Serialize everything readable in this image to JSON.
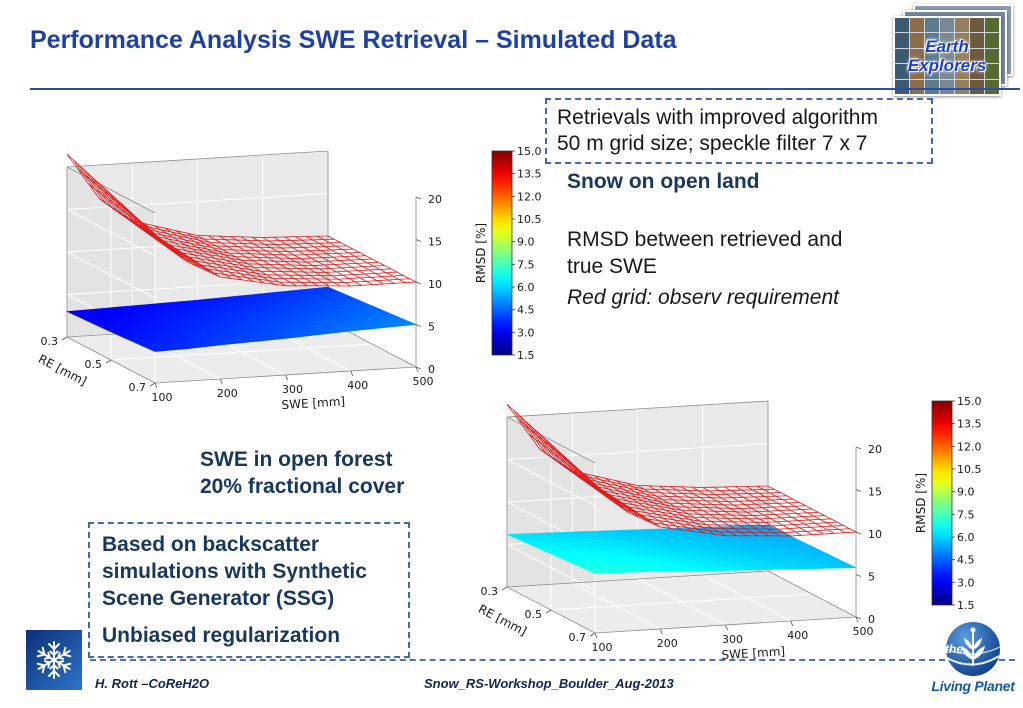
{
  "slide": {
    "title": "Performance Analysis SWE Retrieval – Simulated Data",
    "footer": {
      "author": "H. Rott –CoReH2O",
      "workshop": "Snow_RS-Workshop_Boulder_Aug-2013"
    }
  },
  "info_box": {
    "line1": "Retrievals with improved algorithm",
    "line2": "50 m grid size; speckle filter 7 x 7"
  },
  "right_notes": {
    "heading": "Snow on open land",
    "body": "RMSD between retrieved and true SWE",
    "annotation": "Red grid: observ requirement"
  },
  "forest_label": {
    "line1": "SWE in open forest",
    "line2": "20% fractional cover"
  },
  "method_box": {
    "para1": "Based on backscatter simulations with Synthetic Scene Generator (SSG)",
    "para2": "Unbiased regularization"
  },
  "logos": {
    "earth_explorers": {
      "line1": "Earth",
      "line2": "Explorers"
    },
    "living_planet": {
      "the": "the",
      "name": "Living Planet"
    }
  },
  "colors": {
    "title_blue": "#1d3fa6",
    "navy": "#17375e",
    "dashed_border": "#4068b8",
    "divider_blue": "#2b4ea8",
    "red_grid": "#e01010"
  },
  "chart_data": [
    {
      "type": "surface3d",
      "name": "snow-open-land",
      "title": "Snow on open land – RMSD between retrieved and true SWE",
      "x_label": "SWE [mm]",
      "x_ticks": [
        100,
        200,
        300,
        400,
        500
      ],
      "x_range": [
        100,
        500
      ],
      "y_label": "RE [mm]",
      "y_ticks": [
        0.3,
        0.5,
        0.7
      ],
      "y_range": [
        0.3,
        0.7
      ],
      "z_ticks": [
        0,
        5,
        10,
        15,
        20
      ],
      "z_range": [
        0,
        20
      ],
      "colorbar": {
        "label": "RMSD [%]",
        "vmin": 1.5,
        "vmax": 15.0,
        "ticks": [
          15.0,
          13.5,
          12.0,
          10.5,
          9.0,
          7.5,
          6.0,
          4.5,
          3.0,
          1.5
        ],
        "colormap": "jet"
      },
      "swe_samples": [
        100,
        150,
        200,
        300,
        400,
        500
      ],
      "re_samples": [
        0.3,
        0.5,
        0.7
      ],
      "rmsd_surface_z": [
        [
          3.0,
          3.1,
          3.2,
          3.4,
          3.7,
          4.0
        ],
        [
          3.3,
          3.4,
          3.6,
          3.9,
          4.2,
          4.5
        ],
        [
          3.7,
          3.8,
          4.0,
          4.3,
          4.7,
          5.0
        ]
      ],
      "requirement_grid_z": [
        [
          21.5,
          16.0,
          13.2,
          11.0,
          10.3,
          10.0
        ],
        [
          19.5,
          15.0,
          12.6,
          10.8,
          10.1,
          10.0
        ],
        [
          17.5,
          14.0,
          12.0,
          10.5,
          10.0,
          10.0
        ]
      ],
      "requirement_color": "#e01010",
      "annotation": "Red grid: observ requirement"
    },
    {
      "type": "surface3d",
      "name": "swe-open-forest",
      "title": "SWE in open forest, 20% fractional cover",
      "x_label": "SWE [mm]",
      "x_ticks": [
        100,
        200,
        300,
        400,
        500
      ],
      "x_range": [
        100,
        500
      ],
      "y_label": "RE [mm]",
      "y_ticks": [
        0.3,
        0.5,
        0.7
      ],
      "y_range": [
        0.3,
        0.7
      ],
      "z_ticks": [
        0,
        5,
        10,
        15,
        20
      ],
      "z_range": [
        0,
        20
      ],
      "colorbar": {
        "label": "RMSD [%]",
        "vmin": 1.5,
        "vmax": 15.0,
        "ticks": [
          15.0,
          13.5,
          12.0,
          10.5,
          9.0,
          7.5,
          6.0,
          4.5,
          3.0,
          1.5
        ],
        "colormap": "jet"
      },
      "swe_samples": [
        100,
        150,
        200,
        300,
        400,
        500
      ],
      "re_samples": [
        0.3,
        0.5,
        0.7
      ],
      "rmsd_surface_z": [
        [
          6.2,
          6.1,
          6.0,
          5.8,
          5.6,
          5.4
        ],
        [
          6.6,
          6.5,
          6.4,
          6.1,
          5.8,
          5.6
        ],
        [
          7.0,
          6.9,
          6.8,
          6.4,
          6.1,
          5.8
        ]
      ],
      "requirement_grid_z": [
        [
          21.5,
          16.0,
          13.2,
          11.0,
          10.3,
          10.0
        ],
        [
          19.5,
          15.0,
          12.6,
          10.8,
          10.1,
          10.0
        ],
        [
          17.5,
          14.0,
          12.0,
          10.5,
          10.0,
          10.0
        ]
      ],
      "requirement_color": "#e01010",
      "annotation": "Red grid: observ requirement"
    }
  ]
}
